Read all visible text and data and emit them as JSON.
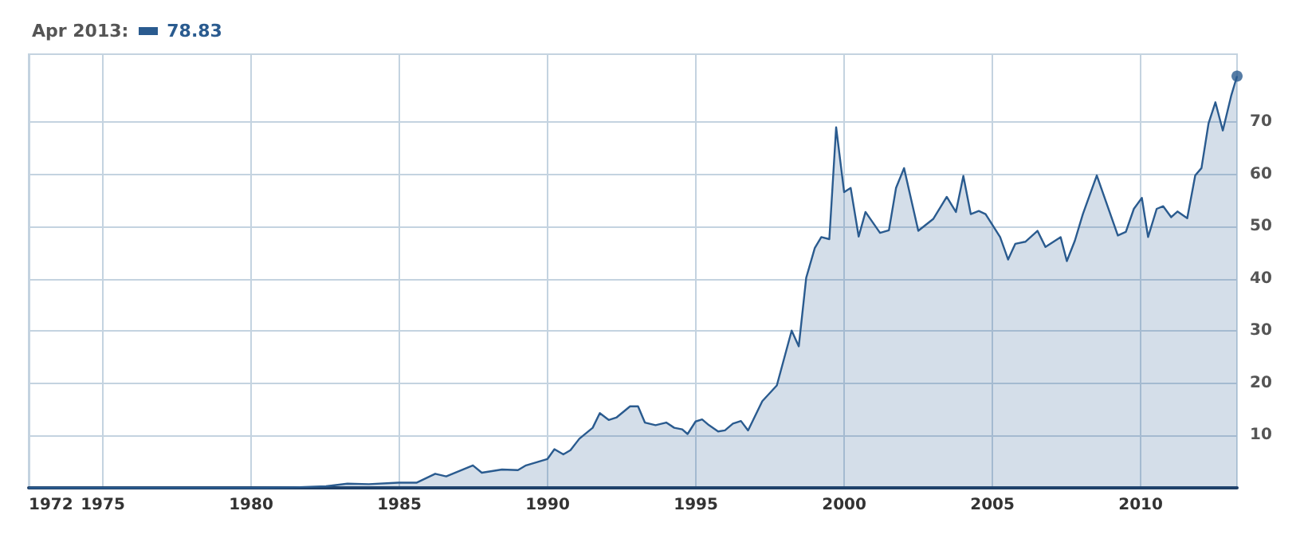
{
  "chart_data": {
    "type": "area",
    "title": "Apr 2013:",
    "annotations": [
      "78.83"
    ],
    "x": [
      1972.5,
      1976,
      1980,
      1981.45,
      1982.53,
      1983.25,
      1983.97,
      1984.96,
      1985.59,
      1986.21,
      1986.58,
      1987.48,
      1987.78,
      1988.46,
      1989.0,
      1989.27,
      1989.99,
      1990.23,
      1990.53,
      1990.77,
      1991.07,
      1991.52,
      1991.76,
      1992.06,
      1992.33,
      1992.78,
      1993.05,
      1993.28,
      1993.64,
      1994.0,
      1994.27,
      1994.54,
      1994.72,
      1994.99,
      1995.21,
      1995.44,
      1995.75,
      1995.98,
      1996.25,
      1996.52,
      1996.76,
      1997.24,
      1997.73,
      1998.23,
      1998.47,
      1998.72,
      1999.01,
      1999.23,
      1999.5,
      1999.73,
      2000.0,
      2000.22,
      2000.49,
      2000.72,
      2001.21,
      2001.51,
      2001.75,
      2002.02,
      2002.5,
      2003.01,
      2003.46,
      2003.77,
      2004.02,
      2004.27,
      2004.54,
      2004.77,
      2005.26,
      2005.53,
      2005.77,
      2006.11,
      2006.52,
      2006.79,
      2007.3,
      2007.51,
      2007.78,
      2008.05,
      2008.52,
      2009.23,
      2009.5,
      2009.77,
      2010.04,
      2010.25,
      2010.54,
      2010.76,
      2011.03,
      2011.24,
      2011.57,
      2011.84,
      2012.05,
      2012.29,
      2012.52,
      2012.77,
      2013.05,
      2013.25
    ],
    "series": [
      {
        "color": "#2a5b8f",
        "values": [
          0,
          0,
          0,
          0.1,
          0.3,
          0.8,
          0.7,
          1.0,
          1.0,
          2.7,
          2.2,
          4.3,
          2.9,
          3.5,
          3.4,
          4.3,
          5.5,
          7.4,
          6.4,
          7.2,
          9.4,
          11.5,
          14.3,
          13.0,
          13.5,
          15.6,
          15.6,
          12.5,
          12.0,
          12.5,
          11.5,
          11.2,
          10.3,
          12.7,
          13.1,
          12.0,
          10.8,
          11.0,
          12.3,
          12.8,
          11.0,
          16.6,
          19.6,
          30.1,
          27.1,
          40.2,
          45.9,
          48.0,
          47.6,
          69.0,
          56.6,
          57.4,
          48.1,
          52.8,
          48.8,
          49.3,
          57.4,
          61.2,
          49.2,
          51.5,
          55.7,
          52.8,
          59.7,
          52.4,
          53.0,
          52.4,
          48.0,
          43.7,
          46.7,
          47.1,
          49.2,
          46.1,
          48.0,
          43.4,
          47.3,
          52.4,
          59.8,
          48.3,
          49.0,
          53.4,
          55.5,
          48.0,
          53.4,
          53.9,
          51.8,
          52.9,
          51.6,
          59.8,
          61.2,
          69.8,
          73.8,
          68.4,
          75.0,
          78.8
        ]
      },
      {
        "type": "scatter",
        "color": "#2a5b8f",
        "x": [
          2013.25
        ],
        "values": [
          78.8
        ]
      }
    ],
    "xlim": [
      1972.5,
      2013.25
    ],
    "xticks": [
      {
        "value": 1972.5,
        "label": "1972"
      },
      1975,
      1980,
      1985,
      1990,
      1995,
      2000,
      2005,
      2010
    ],
    "ylim": [
      0,
      83
    ],
    "yticks": [
      10,
      20,
      30,
      40,
      50,
      60,
      70
    ],
    "grid": true
  }
}
